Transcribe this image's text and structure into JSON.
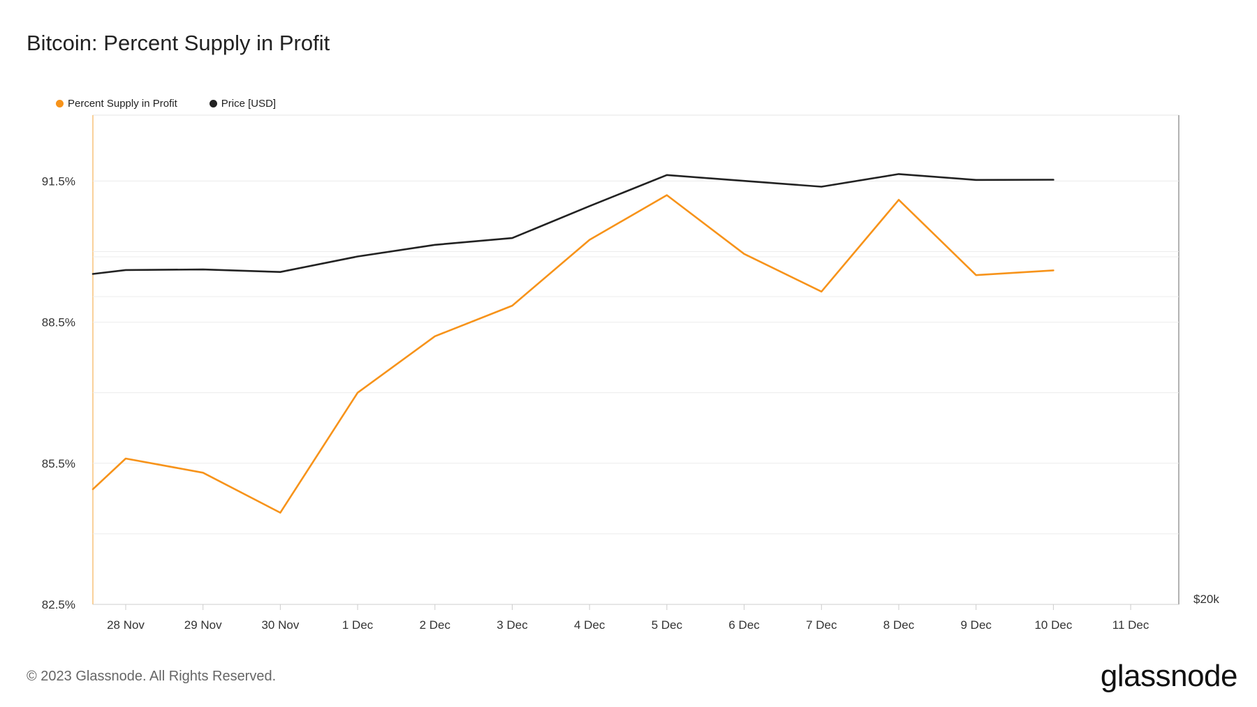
{
  "title": "Bitcoin: Percent Supply in Profit",
  "footer": "© 2023 Glassnode. All Rights Reserved.",
  "logo": "glassnode",
  "legend": [
    {
      "label": "Percent Supply in Profit",
      "color": "#f7931a"
    },
    {
      "label": "Price [USD]",
      "color": "#222222"
    }
  ],
  "chart_data": {
    "type": "line",
    "x": [
      "27.55 Nov",
      "28 Nov",
      "29 Nov",
      "30 Nov",
      "1 Dec",
      "2 Dec",
      "3 Dec",
      "4 Dec",
      "5 Dec",
      "6 Dec",
      "7 Dec",
      "8 Dec",
      "9 Dec",
      "10 Dec"
    ],
    "x_ticks": [
      "28 Nov",
      "29 Nov",
      "30 Nov",
      "1 Dec",
      "2 Dec",
      "3 Dec",
      "4 Dec",
      "5 Dec",
      "6 Dec",
      "7 Dec",
      "8 Dec",
      "9 Dec",
      "10 Dec",
      "11 Dec"
    ],
    "y_ticks": [
      "91.5%",
      "88.5%",
      "85.5%",
      "82.5%"
    ],
    "y_right_ticks": [
      "$20k"
    ],
    "ylim": [
      82.5,
      92.9
    ],
    "grid": true,
    "legend_position": "top-left",
    "series": [
      {
        "name": "Percent Supply in Profit",
        "color": "#f7931a",
        "axis": "left",
        "x_index": [
          -0.44,
          0,
          1,
          2,
          3,
          4,
          5,
          6,
          7,
          8,
          9,
          10,
          11,
          12
        ],
        "values": [
          84.95,
          85.6,
          85.3,
          84.45,
          87.0,
          88.2,
          88.85,
          90.25,
          91.2,
          89.95,
          89.15,
          91.1,
          89.5,
          89.6
        ]
      },
      {
        "name": "Price [USD]",
        "color": "#222222",
        "axis": "right",
        "x_index": [
          -0.44,
          0,
          1,
          2,
          3,
          4,
          5,
          6,
          7,
          8,
          9,
          10,
          11,
          12
        ],
        "values": [
          37050,
          37250,
          37280,
          37150,
          37950,
          38550,
          38900,
          40550,
          42150,
          41850,
          41550,
          42200,
          41900,
          41910
        ]
      }
    ]
  }
}
